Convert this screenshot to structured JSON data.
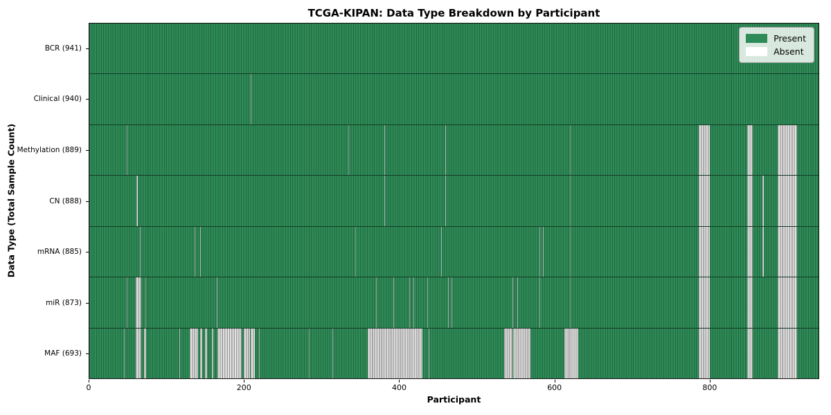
{
  "title": "TCGA-KIPAN: Data Type Breakdown by Participant",
  "xlabel": "Participant",
  "ylabel": "Data Type (Total Sample Count)",
  "colors": {
    "present": "#2e8b57",
    "absent": "#ffffff",
    "legend_background": "#e8e8e8",
    "figure_background": "#ffffff"
  },
  "legend": {
    "items": [
      {
        "label": "Present",
        "color": "#2e8b57"
      },
      {
        "label": "Absent",
        "color": "#ffffff"
      }
    ]
  },
  "chart_data": {
    "type": "heatmap",
    "title": "TCGA-KIPAN: Data Type Breakdown by Participant",
    "xlabel": "Participant",
    "ylabel": "Data Type (Total Sample Count)",
    "x_min": 0,
    "x_max": 941,
    "x_ticks": [
      0,
      200,
      400,
      600,
      800
    ],
    "legend_position": "upper right",
    "grid": false,
    "rows": [
      {
        "label": "BCR (941)",
        "data_type": "BCR",
        "present_count": 941,
        "absent_ranges": []
      },
      {
        "label": "Clinical (940)",
        "data_type": "Clinical",
        "present_count": 940,
        "absent_ranges": [
          [
            208,
            209
          ]
        ]
      },
      {
        "label": "Methylation (889)",
        "data_type": "Methylation",
        "present_count": 889,
        "absent_ranges": [
          [
            48,
            49
          ],
          [
            334,
            335
          ],
          [
            381,
            382
          ],
          [
            459,
            460
          ],
          [
            620,
            621
          ],
          [
            786,
            801
          ],
          [
            849,
            856
          ],
          [
            888,
            913
          ]
        ]
      },
      {
        "label": "CN (888)",
        "data_type": "CN",
        "present_count": 888,
        "absent_ranges": [
          [
            61,
            63
          ],
          [
            381,
            382
          ],
          [
            459,
            460
          ],
          [
            620,
            621
          ],
          [
            786,
            801
          ],
          [
            849,
            856
          ],
          [
            869,
            870
          ],
          [
            888,
            913
          ]
        ]
      },
      {
        "label": "mRNA (885)",
        "data_type": "mRNA",
        "present_count": 885,
        "absent_ranges": [
          [
            65,
            66
          ],
          [
            136,
            137
          ],
          [
            143,
            144
          ],
          [
            343,
            344
          ],
          [
            454,
            455
          ],
          [
            581,
            582
          ],
          [
            585,
            586
          ],
          [
            620,
            621
          ],
          [
            786,
            801
          ],
          [
            849,
            856
          ],
          [
            869,
            870
          ],
          [
            888,
            913
          ]
        ]
      },
      {
        "label": "miR (873)",
        "data_type": "miR",
        "present_count": 873,
        "absent_ranges": [
          [
            48,
            49
          ],
          [
            60,
            67
          ],
          [
            72,
            73
          ],
          [
            164,
            165
          ],
          [
            370,
            371
          ],
          [
            392,
            393
          ],
          [
            413,
            414
          ],
          [
            418,
            419
          ],
          [
            436,
            437
          ],
          [
            463,
            464
          ],
          [
            467,
            468
          ],
          [
            546,
            547
          ],
          [
            552,
            553
          ],
          [
            581,
            582
          ],
          [
            620,
            621
          ],
          [
            786,
            801
          ],
          [
            849,
            856
          ],
          [
            888,
            913
          ]
        ]
      },
      {
        "label": "MAF (693)",
        "data_type": "MAF",
        "present_count": 693,
        "absent_ranges": [
          [
            45,
            46
          ],
          [
            60,
            67
          ],
          [
            71,
            73
          ],
          [
            116,
            117
          ],
          [
            130,
            140
          ],
          [
            143,
            146
          ],
          [
            149,
            152
          ],
          [
            158,
            160
          ],
          [
            165,
            197
          ],
          [
            199,
            207
          ],
          [
            208,
            214
          ],
          [
            219,
            220
          ],
          [
            283,
            284
          ],
          [
            314,
            315
          ],
          [
            359,
            430
          ],
          [
            438,
            439
          ],
          [
            535,
            546
          ],
          [
            547,
            569
          ],
          [
            613,
            631
          ],
          [
            786,
            801
          ],
          [
            849,
            856
          ],
          [
            888,
            913
          ]
        ]
      }
    ]
  }
}
